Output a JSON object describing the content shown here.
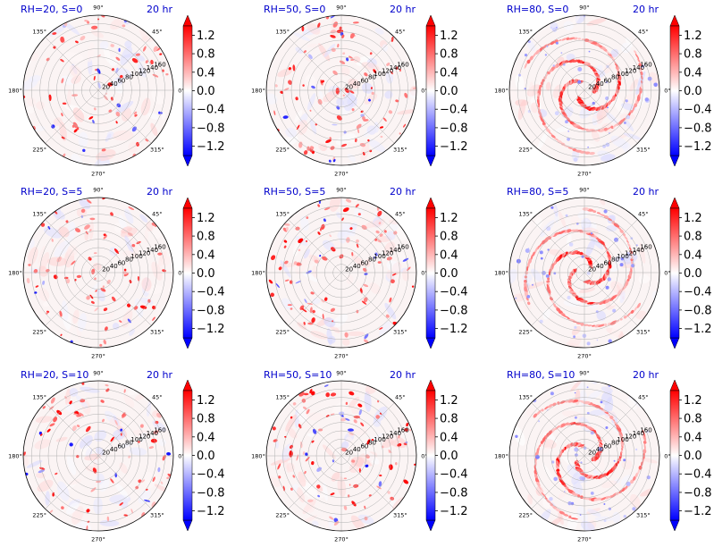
{
  "chart_data": {
    "type": "polar-heatmap-grid",
    "field_min": -1.4,
    "field_max": 1.4,
    "colormap": "bwr",
    "colormap_colors": {
      "low": "#0000ff",
      "mid": "#ffffff",
      "high": "#ff0000"
    },
    "colorbar_extend": "both",
    "colorbar_ticks": [
      "1.2",
      "0.8",
      "0.4",
      "0.0",
      "−0.4",
      "−0.8",
      "−1.2"
    ],
    "colorbar_tick_values": [
      1.2,
      0.8,
      0.4,
      0.0,
      -0.4,
      -0.8,
      -1.2
    ],
    "angle_labels": [
      "0°",
      "45°",
      "90°",
      "135°",
      "180°",
      "225°",
      "270°",
      "315°"
    ],
    "angle_values": [
      0,
      45,
      90,
      135,
      180,
      225,
      270,
      315
    ],
    "radial_labels": [
      "20",
      "40",
      "60",
      "80",
      "100",
      "120",
      "140",
      "160"
    ],
    "radial_values": [
      20,
      40,
      60,
      80,
      100,
      120,
      140,
      160
    ],
    "rmax": 180,
    "grid": true,
    "panels": [
      {
        "title": "RH=20, S=0",
        "time": "20 hr",
        "pattern": "scattered"
      },
      {
        "title": "RH=50, S=0",
        "time": "20 hr",
        "pattern": "scattered"
      },
      {
        "title": "RH=80, S=0",
        "time": "20 hr",
        "pattern": "spiral"
      },
      {
        "title": "RH=20, S=5",
        "time": "20 hr",
        "pattern": "scattered"
      },
      {
        "title": "RH=50, S=5",
        "time": "20 hr",
        "pattern": "scattered"
      },
      {
        "title": "RH=80, S=5",
        "time": "20 hr",
        "pattern": "spiral"
      },
      {
        "title": "RH=20, S=10",
        "time": "20 hr",
        "pattern": "scattered"
      },
      {
        "title": "RH=50, S=10",
        "time": "20 hr",
        "pattern": "scattered"
      },
      {
        "title": "RH=80, S=10",
        "time": "20 hr",
        "pattern": "spiral"
      }
    ]
  }
}
